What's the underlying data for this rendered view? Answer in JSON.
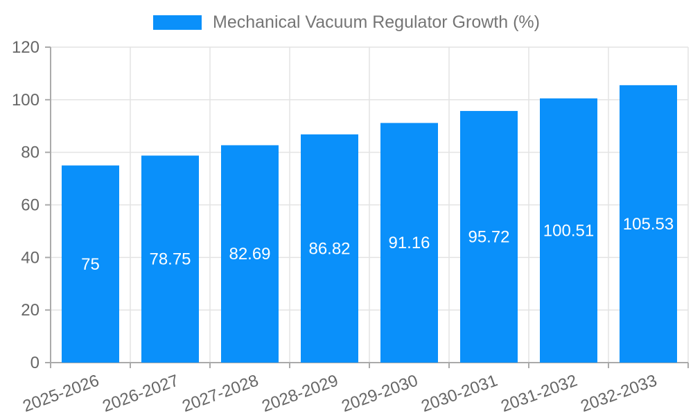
{
  "chart_data": {
    "type": "bar",
    "legend": "Mechanical Vacuum Regulator Growth (%)",
    "legend_position": "top-center",
    "categories": [
      "2025-2026",
      "2026-2027",
      "2027-2028",
      "2028-2029",
      "2029-2030",
      "2030-2031",
      "2031-2032",
      "2032-2033"
    ],
    "values": [
      75,
      78.75,
      82.69,
      86.82,
      91.16,
      95.72,
      100.51,
      105.53
    ],
    "value_labels": [
      "75",
      "78.75",
      "82.69",
      "86.82",
      "91.16",
      "95.72",
      "100.51",
      "105.53"
    ],
    "ylim": [
      0,
      120
    ],
    "yticks": [
      0,
      20,
      40,
      60,
      80,
      100,
      120
    ],
    "grid": true,
    "x_label_rotation_deg": -20,
    "colors": {
      "bar": "#0a90fa",
      "tick_text": "#666666",
      "legend_text": "#757575",
      "axis_line": "#aaaaaa",
      "gridline": "#e3e3e3",
      "value_label_text": "#ffffff",
      "background": "#ffffff"
    }
  }
}
